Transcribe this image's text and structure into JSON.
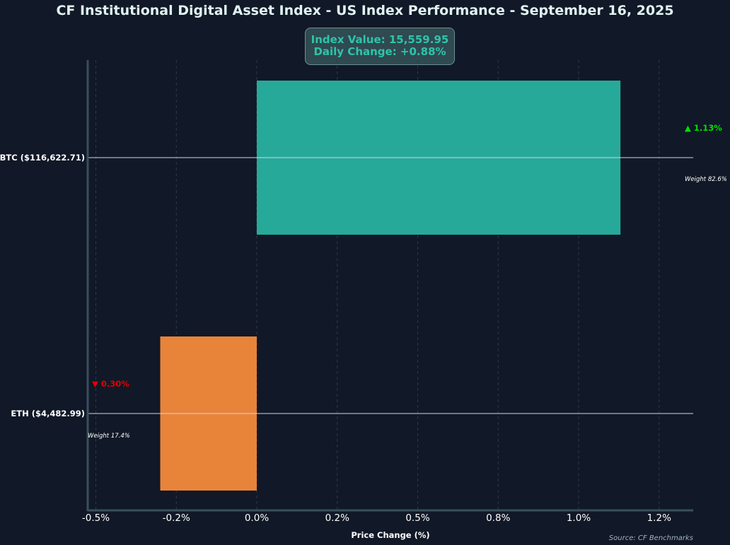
{
  "title": "CF Institutional Digital Asset Index - US Index Performance - September 16, 2025",
  "index_box": {
    "value_text": "Index Value: 15,559.95",
    "change_text": "Daily Change: +0.88%"
  },
  "source": "Source: CF Benchmarks",
  "colors": {
    "positive_bar": "#27a99a",
    "negative_bar": "#e8833a",
    "positive_text": "#00e000",
    "negative_text": "#e00000",
    "background": "#111827",
    "index_text": "#2ec4a9"
  },
  "chart_data": {
    "type": "bar",
    "orientation": "horizontal",
    "title": "CF Institutional Digital Asset Index - US Index Performance - September 16, 2025",
    "xlabel": "Price Change (%)",
    "ylabel": "",
    "xlim": [
      -0.55,
      1.35
    ],
    "xticks": [
      -0.5,
      -0.25,
      0.0,
      0.25,
      0.5,
      0.75,
      1.0,
      1.25
    ],
    "xtick_labels": [
      "-0.5%",
      "-0.2%",
      "0.0%",
      "0.2%",
      "0.5%",
      "0.8%",
      "1.0%",
      "1.2%"
    ],
    "grid": "vertical dashed",
    "categories": [
      "BTC ($116,622.71)",
      "ETH ($4,482.99)"
    ],
    "values": [
      1.13,
      -0.3
    ],
    "change_labels": [
      "▲ 1.13%",
      "▼ 0.30%"
    ],
    "weight_labels": [
      "Weight 82.6%",
      "Weight 17.4%"
    ]
  }
}
